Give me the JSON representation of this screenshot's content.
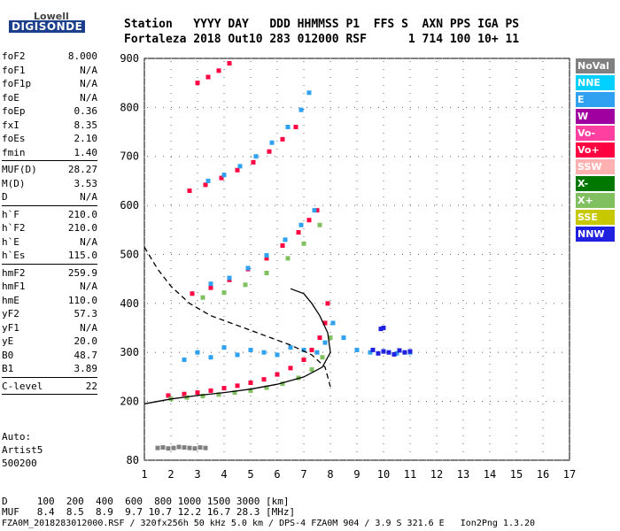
{
  "logo": {
    "line1": "Lowell",
    "line2": "DIGISONDE"
  },
  "header": {
    "line1": "Station   YYYY DAY   DDD HHMMSS P1  FFS S  AXN PPS IGA PS",
    "line2": "Fortaleza 2018 Out10 283 012000 RSF      1 714 100 10+ 11"
  },
  "params": {
    "group1": [
      {
        "k": "foF2",
        "v": "8.000"
      },
      {
        "k": "foF1",
        "v": "N/A"
      },
      {
        "k": "foF1p",
        "v": "N/A"
      },
      {
        "k": "foE",
        "v": "N/A"
      },
      {
        "k": "foEp",
        "v": "0.36"
      },
      {
        "k": "fxI",
        "v": "8.35"
      },
      {
        "k": "foEs",
        "v": "2.10"
      },
      {
        "k": "fmin",
        "v": "1.40"
      }
    ],
    "group2": [
      {
        "k": "MUF(D)",
        "v": "28.27"
      },
      {
        "k": "M(D)",
        "v": "3.53"
      },
      {
        "k": "D",
        "v": "N/A"
      }
    ],
    "group3": [
      {
        "k": "h`F",
        "v": "210.0"
      },
      {
        "k": "h`F2",
        "v": "210.0"
      },
      {
        "k": "h`E",
        "v": "N/A"
      },
      {
        "k": "h`Es",
        "v": "115.0"
      }
    ],
    "group4": [
      {
        "k": "hmF2",
        "v": "259.9"
      },
      {
        "k": "hmF1",
        "v": "N/A"
      },
      {
        "k": "hmE",
        "v": "110.0"
      },
      {
        "k": "yF2",
        "v": "57.3"
      },
      {
        "k": "yF1",
        "v": "N/A"
      },
      {
        "k": "yE",
        "v": "20.0"
      },
      {
        "k": "B0",
        "v": "48.7"
      },
      {
        "k": "B1",
        "v": "3.89"
      }
    ],
    "group5": [
      {
        "k": "C-level",
        "v": "22"
      }
    ]
  },
  "auto": {
    "label": "Auto:",
    "artist": "Artist5",
    "code": "500200"
  },
  "bottom": {
    "d_row": "D     100  200  400  600  800 1000 1500 3000 [km]",
    "muf_row": "MUF   8.4  8.5  8.9  9.7 10.7 12.2 16.7 28.3 [MHz]",
    "footer": "FZA0M_2018283012000.RSF / 320fx256h 50 kHz 5.0 km / DPS-4 FZA0M 904 / 3.9 S 321.6 E   Ion2Png 1.3.20"
  },
  "legend": [
    {
      "label": "NoVal",
      "color": "#808080"
    },
    {
      "label": "NNE",
      "color": "#00d0ff"
    },
    {
      "label": "E",
      "color": "#30a0f0"
    },
    {
      "label": "W",
      "color": "#a000a0"
    },
    {
      "label": "Vo-",
      "color": "#ff40a0"
    },
    {
      "label": "Vo+",
      "color": "#ff0040"
    },
    {
      "label": "SSW",
      "color": "#ffb0b0"
    },
    {
      "label": "X-",
      "color": "#007800"
    },
    {
      "label": "X+",
      "color": "#80c060"
    },
    {
      "label": "SSE",
      "color": "#c8c800"
    },
    {
      "label": "NNW",
      "color": "#2020e0"
    }
  ],
  "chart_data": {
    "type": "scatter",
    "xlim": [
      1,
      17
    ],
    "ylim": [
      80,
      900
    ],
    "xticks": [
      1,
      2,
      3,
      4,
      5,
      6,
      7,
      8,
      9,
      10,
      11,
      12,
      13,
      14,
      15,
      16,
      17
    ],
    "yticks": [
      80,
      200,
      300,
      400,
      500,
      600,
      700,
      800,
      900
    ],
    "grid": true,
    "series": [
      {
        "color": "#ff0040",
        "x": [
          1.9,
          2.5,
          3.0,
          3.5,
          4.0,
          4.5,
          5.0,
          5.5,
          6.0,
          6.5,
          7.0,
          7.3,
          7.6,
          7.8,
          7.9
        ],
        "y": [
          212,
          215,
          218,
          222,
          227,
          232,
          238,
          245,
          255,
          268,
          285,
          305,
          330,
          360,
          400
        ]
      },
      {
        "color": "#80c060",
        "x": [
          2.0,
          2.6,
          3.2,
          3.8,
          4.4,
          5.0,
          5.6,
          6.2,
          6.8,
          7.3,
          7.7,
          8.0
        ],
        "y": [
          205,
          208,
          211,
          214,
          218,
          222,
          228,
          236,
          248,
          265,
          290,
          330
        ]
      },
      {
        "color": "#30a0f0",
        "x": [
          2.5,
          3.0,
          3.5,
          4.0,
          4.5,
          5.0,
          5.5,
          6.0,
          6.5,
          7.0,
          7.5,
          7.8,
          8.1,
          8.5,
          9.0,
          9.5,
          10.0,
          10.5,
          11.0
        ],
        "y": [
          285,
          300,
          290,
          310,
          295,
          305,
          300,
          295,
          310,
          305,
          300,
          320,
          360,
          330,
          305,
          300,
          302,
          298,
          300
        ]
      },
      {
        "color": "#ff0040",
        "x": [
          2.8,
          3.5,
          4.2,
          4.9,
          5.6,
          6.2,
          6.8,
          7.2,
          7.5
        ],
        "y": [
          420,
          432,
          448,
          470,
          492,
          518,
          545,
          570,
          590
        ]
      },
      {
        "color": "#80c060",
        "x": [
          3.2,
          4.0,
          4.8,
          5.6,
          6.4,
          7.0,
          7.6
        ],
        "y": [
          412,
          422,
          438,
          462,
          492,
          522,
          560
        ]
      },
      {
        "color": "#30a0f0",
        "x": [
          3.5,
          4.2,
          4.9,
          5.6,
          6.3,
          6.9,
          7.4
        ],
        "y": [
          440,
          452,
          472,
          498,
          530,
          560,
          590
        ]
      },
      {
        "color": "#ff0040",
        "x": [
          2.7,
          3.3,
          3.9,
          4.5,
          5.1,
          5.7,
          6.2,
          6.7
        ],
        "y": [
          630,
          642,
          656,
          672,
          688,
          710,
          735,
          760
        ]
      },
      {
        "color": "#30a0f0",
        "x": [
          3.4,
          4.0,
          4.6,
          5.2,
          5.8,
          6.4,
          6.9,
          7.2
        ],
        "y": [
          650,
          662,
          680,
          700,
          728,
          760,
          795,
          830
        ]
      },
      {
        "color": "#ff0040",
        "x": [
          3.0,
          3.4,
          3.8,
          4.2
        ],
        "y": [
          850,
          862,
          875,
          890
        ]
      },
      {
        "color": "#2020e0",
        "x": [
          9.6,
          9.8,
          10.0,
          10.2,
          10.4,
          10.6,
          10.8,
          11.0,
          10.0,
          9.9
        ],
        "y": [
          305,
          298,
          302,
          300,
          296,
          304,
          300,
          302,
          350,
          348
        ]
      },
      {
        "color": "#808080",
        "x": [
          1.5,
          1.7,
          1.9,
          2.1,
          2.3,
          2.5,
          2.7,
          2.9,
          3.1,
          3.3
        ],
        "y": [
          105,
          106,
          104,
          105,
          107,
          106,
          105,
          104,
          106,
          105
        ]
      }
    ],
    "curves": [
      {
        "style": "dashed",
        "x": [
          1.0,
          1.5,
          2.0,
          2.7,
          3.5,
          4.5,
          5.5,
          6.5,
          7.3,
          7.8,
          8.0
        ],
        "y": [
          515,
          470,
          435,
          400,
          375,
          355,
          335,
          315,
          295,
          270,
          230
        ]
      },
      {
        "style": "solid",
        "x": [
          1.0,
          2.0,
          3.0,
          4.0,
          5.0,
          6.0,
          7.0,
          7.7,
          8.0,
          7.9,
          7.6,
          7.3,
          7.0,
          6.5
        ],
        "y": [
          195,
          205,
          212,
          218,
          225,
          235,
          250,
          270,
          300,
          340,
          375,
          400,
          420,
          430
        ]
      }
    ]
  }
}
